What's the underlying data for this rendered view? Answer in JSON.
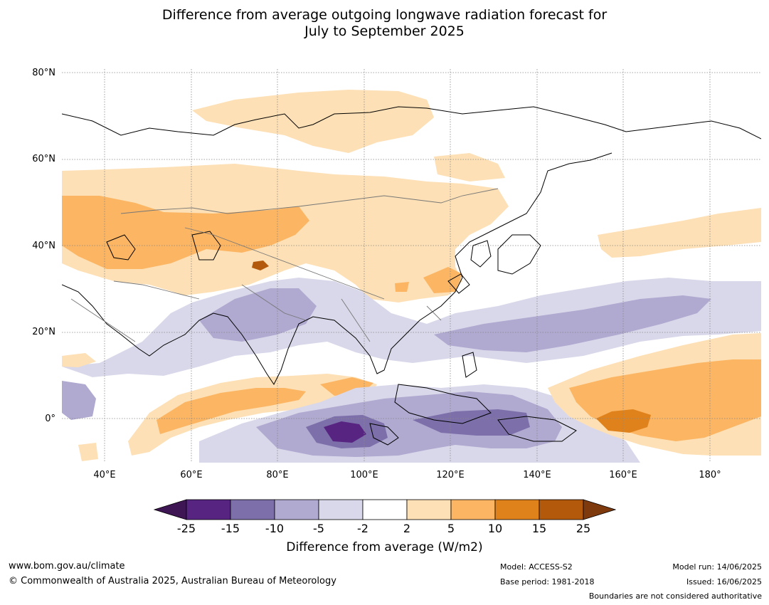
{
  "title_line1": "Difference from average outgoing longwave radiation forecast for",
  "title_line2": "July to September 2025",
  "lat_labels": [
    "80°N",
    "60°N",
    "40°N",
    "20°N",
    "0°"
  ],
  "lon_labels": [
    "40°E",
    "60°E",
    "80°E",
    "100°E",
    "120°E",
    "140°E",
    "160°E",
    "180°"
  ],
  "colorbar": {
    "ticks": [
      "-25",
      "-15",
      "-10",
      "-5",
      "-2",
      "2",
      "5",
      "10",
      "15",
      "25"
    ],
    "colors": [
      "#3f1654",
      "#582482",
      "#7d70aa",
      "#b0a9d0",
      "#d9d8ea",
      "#ffffff",
      "#fde0b5",
      "#fbb563",
      "#e0821b",
      "#b3590b",
      "#7e3a0c"
    ],
    "label": "Difference from average (W/m2)"
  },
  "footer": {
    "url": "www.bom.gov.au/climate",
    "copyright": "© Commonwealth of Australia 2025, Australian Bureau of Meteorology",
    "model": "Model: ACCESS-S2",
    "base_period": "Base period: 1981-2018",
    "model_run": "Model run: 14/06/2025",
    "issued": "Issued: 16/06/2025",
    "disclaimer": "Boundaries are not considered authoritative"
  }
}
